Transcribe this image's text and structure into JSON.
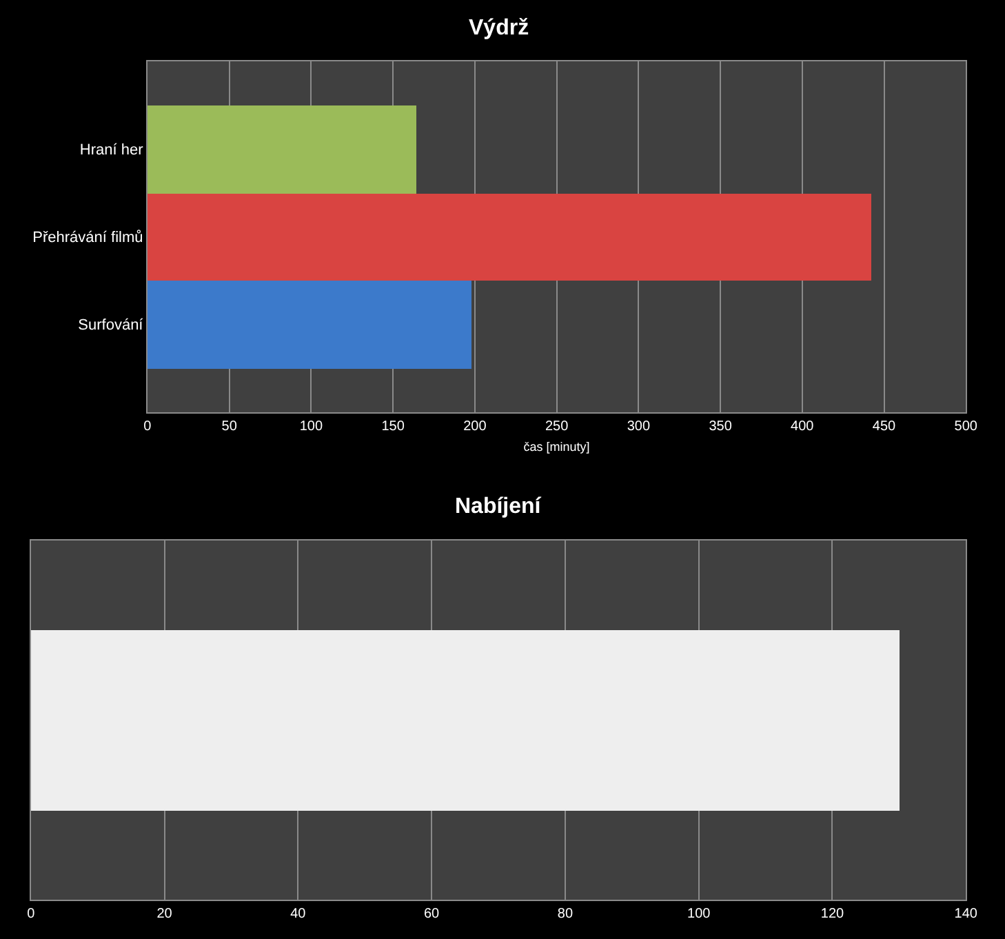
{
  "chart_data": [
    {
      "type": "bar",
      "orientation": "horizontal",
      "title": "Výdrž",
      "xlabel": "čas [minuty]",
      "categories": [
        "Hraní her",
        "Přehrávání filmů",
        "Surfování"
      ],
      "values": [
        164,
        442,
        198
      ],
      "colors": [
        "#9bbb59",
        "#d94441",
        "#3c7acb"
      ],
      "xlim": [
        0,
        500
      ],
      "xticks": [
        0,
        50,
        100,
        150,
        200,
        250,
        300,
        350,
        400,
        450,
        500
      ],
      "grid": "x"
    },
    {
      "type": "bar",
      "orientation": "horizontal",
      "title": "Nabíjení",
      "categories": [
        null
      ],
      "values": [
        130
      ],
      "colors": [
        "#eeeeee"
      ],
      "xlim": [
        0,
        140
      ],
      "xticks": [
        0,
        20,
        40,
        60,
        80,
        100,
        120,
        140
      ],
      "grid": "x"
    }
  ]
}
